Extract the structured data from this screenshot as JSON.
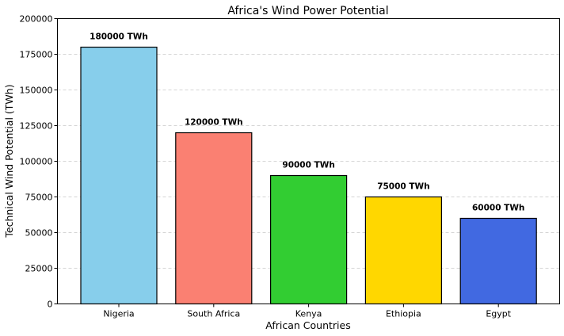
{
  "chart_data": {
    "type": "bar",
    "title": "Africa's Wind Power Potential",
    "xlabel": "African Countries",
    "ylabel": "Technical Wind Potential (TWh)",
    "categories": [
      "Nigeria",
      "South Africa",
      "Kenya",
      "Ethiopia",
      "Egypt"
    ],
    "values": [
      180000,
      120000,
      90000,
      75000,
      60000
    ],
    "data_labels": [
      "180000 TWh",
      "120000 TWh",
      "90000 TWh",
      "75000 TWh",
      "60000 TWh"
    ],
    "colors": [
      "#87ceeb",
      "#fa8072",
      "#32cd32",
      "#ffd700",
      "#4169e1"
    ],
    "ylim": [
      0,
      200000
    ],
    "yticks": [
      0,
      25000,
      50000,
      75000,
      100000,
      125000,
      150000,
      175000,
      200000
    ],
    "grid": "y-dashed",
    "legend": "none"
  }
}
